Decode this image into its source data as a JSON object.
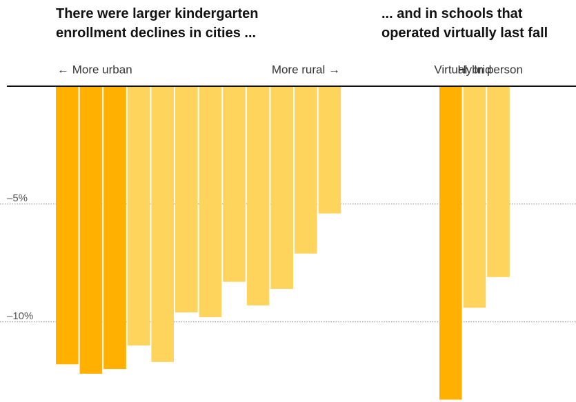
{
  "chart_data": [
    {
      "type": "bar",
      "title": "There were larger kindergarten enrollment declines in cities ...",
      "annotations": [
        "← More urban",
        "More rural →"
      ],
      "categories": [
        null,
        null,
        null,
        null,
        null,
        null,
        null,
        null,
        null,
        null,
        null,
        null
      ],
      "values": [
        -11.8,
        -12.2,
        -12.0,
        -11.0,
        -11.7,
        -9.6,
        -9.8,
        -8.3,
        -9.3,
        -8.6,
        -7.1,
        -5.4
      ],
      "colors": [
        "#ffb000",
        "#ffb000",
        "#ffb000",
        "#ffd45c",
        "#ffd45c",
        "#ffd45c",
        "#ffd45c",
        "#ffd45c",
        "#ffd45c",
        "#ffd45c",
        "#ffd45c",
        "#ffd45c"
      ],
      "ylim": [
        -13.4,
        0
      ],
      "yticks": [
        {
          "value": -5,
          "label": "–5%"
        },
        {
          "value": -10,
          "label": "–10%"
        }
      ],
      "grid": true
    },
    {
      "type": "bar",
      "title": "... and in schools that operated virtually last fall",
      "categories": [
        "Virtual",
        "Hybrid",
        "In person"
      ],
      "values": [
        -13.3,
        -9.4,
        -8.1
      ],
      "colors": [
        "#ffb000",
        "#ffd45c",
        "#ffd45c"
      ],
      "ylim": [
        -13.4,
        0
      ]
    }
  ]
}
